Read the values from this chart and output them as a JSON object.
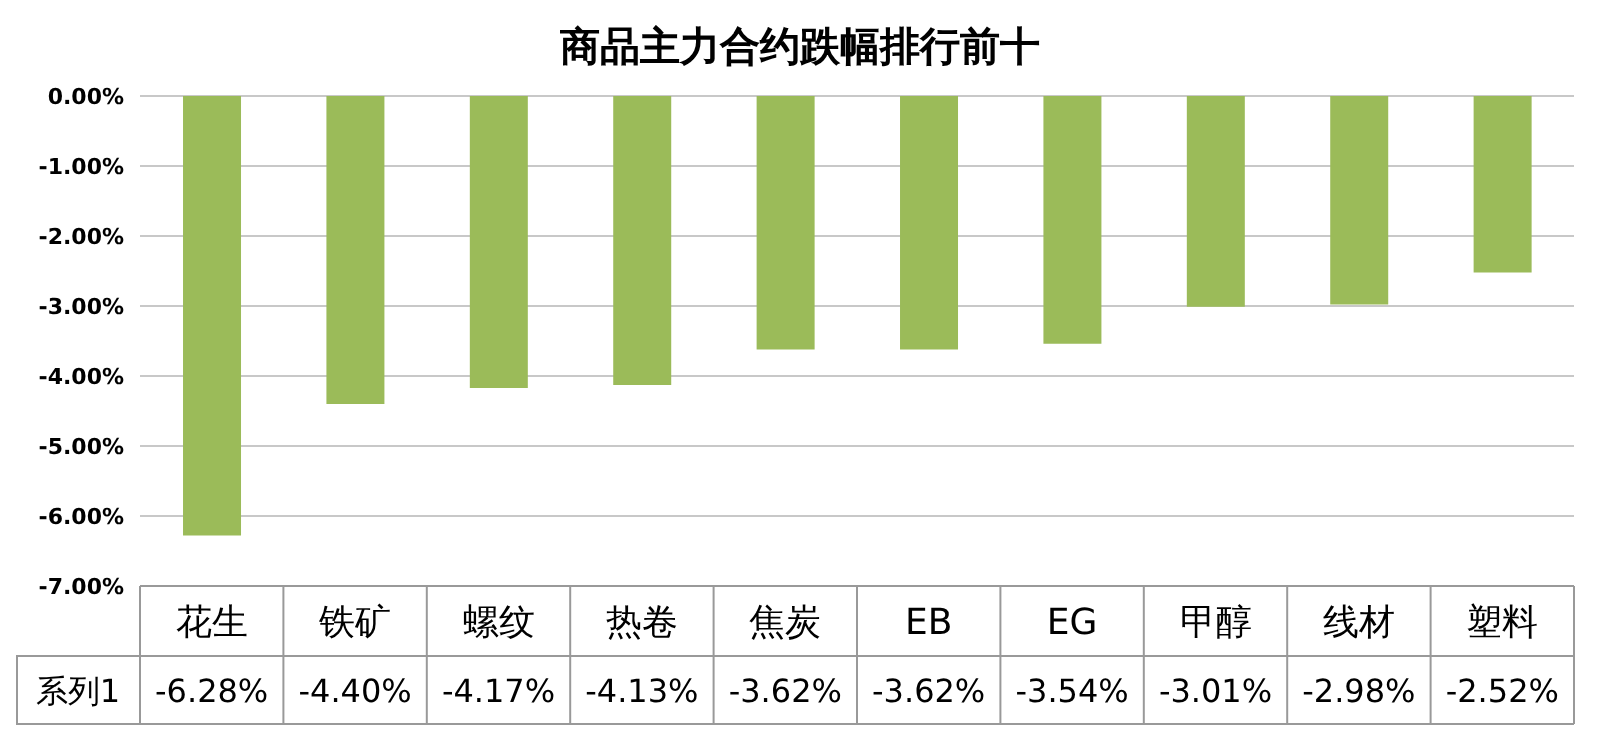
{
  "chart_data": {
    "type": "bar",
    "title": "商品主力合约跌幅排行前十",
    "categories": [
      "花生",
      "铁矿",
      "螺纹",
      "热卷",
      "焦炭",
      "EB",
      "EG",
      "甲醇",
      "线材",
      "塑料"
    ],
    "series": [
      {
        "name": "系列1",
        "color": "#9bbb59",
        "values": [
          -6.28,
          -4.4,
          -4.17,
          -4.13,
          -3.62,
          -3.62,
          -3.54,
          -3.01,
          -2.98,
          -2.52
        ],
        "value_labels": [
          "-6.28%",
          "-4.40%",
          "-4.17%",
          "-4.13%",
          "-3.62%",
          "-3.62%",
          "-3.54%",
          "-3.01%",
          "-2.98%",
          "-2.52%"
        ]
      }
    ],
    "ylim": [
      -7,
      0
    ],
    "yticks": [
      {
        "value": 0,
        "label": "0.00%"
      },
      {
        "value": -1,
        "label": "-1.00%"
      },
      {
        "value": -2,
        "label": "-2.00%"
      },
      {
        "value": -3,
        "label": "-3.00%"
      },
      {
        "value": -4,
        "label": "-4.00%"
      },
      {
        "value": -5,
        "label": "-5.00%"
      },
      {
        "value": -6,
        "label": "-6.00%"
      },
      {
        "value": -7,
        "label": "-7.00%"
      }
    ],
    "grid": "y",
    "legend": false
  }
}
